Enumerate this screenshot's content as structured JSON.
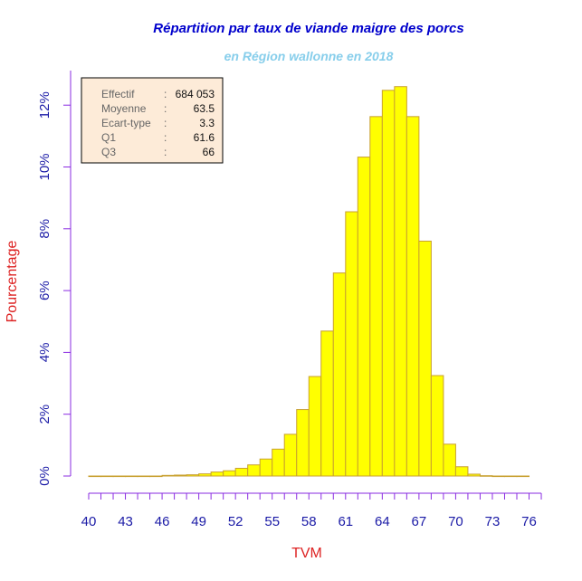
{
  "colors": {
    "title": "#0000cc",
    "subtitle": "#87ceeb",
    "axis_label": "#dd2222",
    "axis": "#8a2be2",
    "tick_label": "#1a1aa6",
    "bar_fill": "#ffff00",
    "bar_stroke": "#c8a030",
    "legend_bg": "#fdebd8",
    "legend_text_key": "#666666",
    "legend_text_value": "#111111"
  },
  "chart_data": {
    "type": "bar",
    "title": "Répartition par taux de viande maigre des porcs",
    "subtitle": "en Région wallonne en 2018",
    "xlabel": "TVM",
    "ylabel": "Pourcentage",
    "xlim": [
      40,
      77
    ],
    "ylim": [
      0,
      13
    ],
    "grid": false,
    "x_ticks": [
      40,
      43,
      46,
      49,
      52,
      55,
      58,
      61,
      64,
      67,
      70,
      73,
      76
    ],
    "y_ticks": [
      0,
      2,
      4,
      6,
      8,
      10,
      12
    ],
    "y_tick_labels": [
      "0%",
      "2%",
      "4%",
      "6%",
      "8%",
      "10%",
      "12%"
    ],
    "bins": [
      {
        "start": 40,
        "end": 41,
        "value": 0.0
      },
      {
        "start": 41,
        "end": 42,
        "value": 0.0
      },
      {
        "start": 42,
        "end": 43,
        "value": 0.0
      },
      {
        "start": 43,
        "end": 44,
        "value": 0.0
      },
      {
        "start": 44,
        "end": 45,
        "value": 0.0
      },
      {
        "start": 45,
        "end": 46,
        "value": 0.0
      },
      {
        "start": 46,
        "end": 47,
        "value": 0.02
      },
      {
        "start": 47,
        "end": 48,
        "value": 0.03
      },
      {
        "start": 48,
        "end": 49,
        "value": 0.04
      },
      {
        "start": 49,
        "end": 50,
        "value": 0.07
      },
      {
        "start": 50,
        "end": 51,
        "value": 0.13
      },
      {
        "start": 51,
        "end": 52,
        "value": 0.17
      },
      {
        "start": 52,
        "end": 53,
        "value": 0.25
      },
      {
        "start": 53,
        "end": 54,
        "value": 0.36
      },
      {
        "start": 54,
        "end": 55,
        "value": 0.55
      },
      {
        "start": 55,
        "end": 56,
        "value": 0.87
      },
      {
        "start": 56,
        "end": 57,
        "value": 1.35
      },
      {
        "start": 57,
        "end": 58,
        "value": 2.15
      },
      {
        "start": 58,
        "end": 59,
        "value": 3.22
      },
      {
        "start": 59,
        "end": 60,
        "value": 4.69
      },
      {
        "start": 60,
        "end": 61,
        "value": 6.57
      },
      {
        "start": 61,
        "end": 62,
        "value": 8.55
      },
      {
        "start": 62,
        "end": 63,
        "value": 10.32
      },
      {
        "start": 63,
        "end": 64,
        "value": 11.63
      },
      {
        "start": 64,
        "end": 65,
        "value": 12.48
      },
      {
        "start": 65,
        "end": 66,
        "value": 12.6
      },
      {
        "start": 66,
        "end": 67,
        "value": 11.63
      },
      {
        "start": 67,
        "end": 68,
        "value": 7.6
      },
      {
        "start": 68,
        "end": 69,
        "value": 3.25
      },
      {
        "start": 69,
        "end": 70,
        "value": 1.03
      },
      {
        "start": 70,
        "end": 71,
        "value": 0.3
      },
      {
        "start": 71,
        "end": 72,
        "value": 0.06
      },
      {
        "start": 72,
        "end": 73,
        "value": 0.01
      },
      {
        "start": 73,
        "end": 74,
        "value": 0.0
      },
      {
        "start": 74,
        "end": 75,
        "value": 0.0
      },
      {
        "start": 75,
        "end": 76,
        "value": 0.0
      }
    ],
    "stats": [
      {
        "label": "Effectif",
        "sep": ":",
        "value": "684 053"
      },
      {
        "label": "Moyenne",
        "sep": ":",
        "value": "63.5"
      },
      {
        "label": "Ecart-type",
        "sep": ":",
        "value": "3.3"
      },
      {
        "label": "Q1",
        "sep": ":",
        "value": "61.6"
      },
      {
        "label": "Q3",
        "sep": ":",
        "value": "66"
      }
    ]
  }
}
